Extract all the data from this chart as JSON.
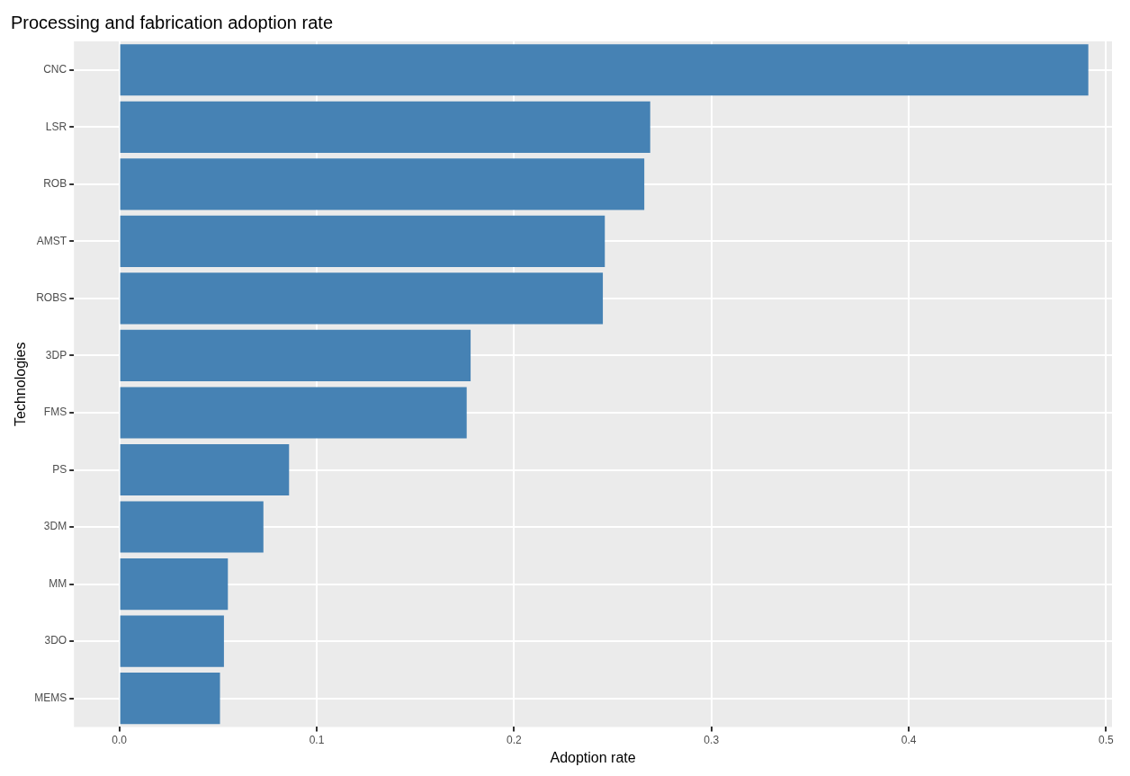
{
  "chart_data": {
    "type": "bar",
    "orientation": "horizontal",
    "title": "Processing and fabrication adoption rate",
    "xlabel": "Adoption rate",
    "ylabel": "Technologies",
    "categories": [
      "CNC",
      "LSR",
      "ROB",
      "AMST",
      "ROBS",
      "3DP",
      "FMS",
      "PS",
      "3DM",
      "MM",
      "3DO",
      "MEMS"
    ],
    "values": [
      0.491,
      0.269,
      0.266,
      0.246,
      0.245,
      0.178,
      0.176,
      0.086,
      0.073,
      0.055,
      0.053,
      0.051
    ],
    "color": "#4682b4",
    "xlim": [
      -0.023,
      0.503
    ],
    "xticks": [
      {
        "value": 0,
        "label": "0.0"
      },
      0.1,
      0.2,
      0.3,
      0.4,
      0.5
    ],
    "grid": true
  }
}
